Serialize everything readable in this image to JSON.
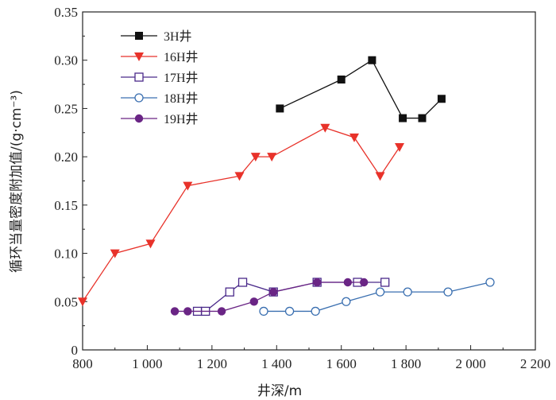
{
  "chart_data": {
    "type": "line",
    "title": "",
    "xlabel": "井深/m",
    "ylabel": "循环当量密度附加值/(g·cm⁻³)",
    "xlim": [
      800,
      2200
    ],
    "ylim": [
      0,
      0.35
    ],
    "xticks": [
      800,
      1000,
      1200,
      1400,
      1600,
      1800,
      2000,
      2200
    ],
    "xtick_labels": [
      "800",
      "1 000",
      "1 200",
      "1 400",
      "1 600",
      "1 800",
      "2 000",
      "2 200"
    ],
    "yticks": [
      0,
      0.05,
      0.1,
      0.15,
      0.2,
      0.25,
      0.3,
      0.35
    ],
    "ytick_labels": [
      "0",
      "0.05",
      "0.10",
      "0.15",
      "0.20",
      "0.25",
      "0.30",
      "0.35"
    ],
    "grid": false,
    "legend_position": "top-left",
    "series": [
      {
        "name": "3H井",
        "color": "#111111",
        "marker": "filled-square",
        "x": [
          1410,
          1600,
          1695,
          1790,
          1850,
          1910
        ],
        "y": [
          0.25,
          0.28,
          0.3,
          0.24,
          0.24,
          0.26
        ]
      },
      {
        "name": "16H井",
        "color": "#e8322a",
        "marker": "filled-triangle-down",
        "x": [
          800,
          900,
          1010,
          1125,
          1285,
          1335,
          1385,
          1550,
          1640,
          1720,
          1780
        ],
        "y": [
          0.05,
          0.1,
          0.11,
          0.17,
          0.18,
          0.2,
          0.2,
          0.23,
          0.22,
          0.18,
          0.21
        ]
      },
      {
        "name": "17H井",
        "color": "#4a2a8a",
        "marker": "open-square",
        "x": [
          1155,
          1180,
          1255,
          1295,
          1390,
          1525,
          1650,
          1735
        ],
        "y": [
          0.04,
          0.04,
          0.06,
          0.07,
          0.06,
          0.07,
          0.07,
          0.07
        ]
      },
      {
        "name": "18H井",
        "color": "#3a6fb0",
        "marker": "open-circle",
        "x": [
          1360,
          1440,
          1520,
          1615,
          1720,
          1805,
          1930,
          2060
        ],
        "y": [
          0.04,
          0.04,
          0.04,
          0.05,
          0.06,
          0.06,
          0.06,
          0.07
        ]
      },
      {
        "name": "19H井",
        "color": "#6a2585",
        "marker": "filled-circle",
        "x": [
          1085,
          1125,
          1230,
          1330,
          1390,
          1525,
          1620,
          1670
        ],
        "y": [
          0.04,
          0.04,
          0.04,
          0.05,
          0.06,
          0.07,
          0.07,
          0.07
        ]
      }
    ]
  }
}
